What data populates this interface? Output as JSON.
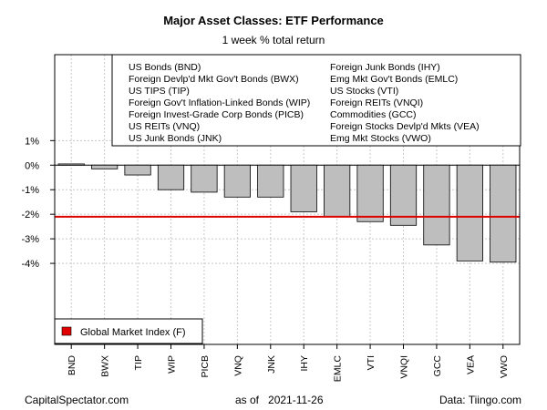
{
  "chart_data": {
    "type": "bar",
    "title": "Major Asset Classes: ETF Performance",
    "subtitle": "1 week % total return",
    "categories": [
      "BND",
      "BWX",
      "TIP",
      "WIP",
      "PICB",
      "VNQ",
      "JNK",
      "IHY",
      "EMLC",
      "VTI",
      "VNQI",
      "GCC",
      "VEA",
      "VWO"
    ],
    "values": [
      0.05,
      -0.15,
      -0.4,
      -1.0,
      -1.1,
      -1.3,
      -1.3,
      -1.9,
      -2.1,
      -2.3,
      -2.45,
      -3.25,
      -3.9,
      -3.95
    ],
    "reference_line": {
      "name": "Global Market Index (F)",
      "value": -2.1,
      "color": "#e00000"
    },
    "ylim": [
      -7.3,
      4.5
    ],
    "y_ticks": [
      1,
      0,
      -1,
      -2,
      -3,
      -4
    ],
    "y_tick_labels": [
      "1%",
      "0%",
      "-1%",
      "-2%",
      "-3%",
      "-4%"
    ],
    "bar_color": "#bebebe",
    "grid": true,
    "legend_entries_left": [
      "US Bonds (BND)",
      "Foreign Devlp'd Mkt Gov't Bonds (BWX)",
      "US TIPS (TIP)",
      "Foreign Gov't Inflation-Linked Bonds (WIP)",
      "Foreign Invest-Grade Corp Bonds (PICB)",
      "US REITs (VNQ)",
      "US Junk Bonds (JNK)"
    ],
    "legend_entries_right": [
      "Foreign Junk Bonds (IHY)",
      "Emg Mkt Gov't Bonds (EMLC)",
      "US Stocks (VTI)",
      "Foreign REITs (VNQI)",
      "Commodities (GCC)",
      "Foreign Stocks Devlp'd Mkts (VEA)",
      "Emg Mkt Stocks (VWO)"
    ],
    "legend_placement": "top-right"
  },
  "footer": {
    "source_left": "CapitalSpectator.com",
    "date": "as of   2021-11-26",
    "source_right": "Data: Tiingo.com"
  }
}
